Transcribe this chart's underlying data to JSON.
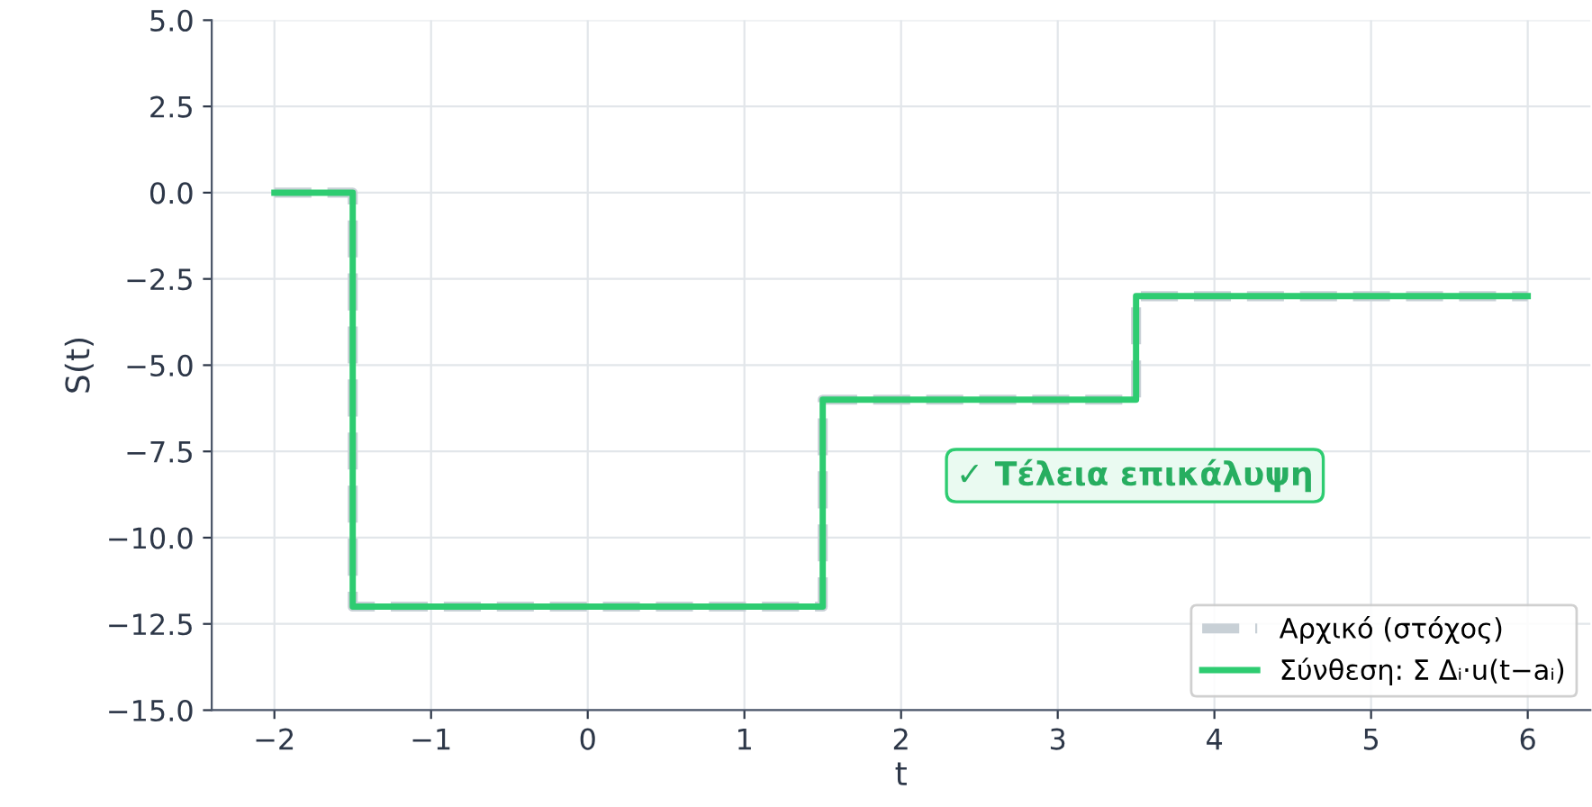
{
  "chart_data": {
    "type": "step",
    "xlabel": "t",
    "ylabel": "S(t)",
    "x": [
      -2,
      -1.5,
      1.5,
      3.5,
      6
    ],
    "series": [
      {
        "name": "Αρχικό (στόχος)",
        "color": "#c8d0d6",
        "line_style": "dashed",
        "values": [
          0,
          -12,
          -6,
          -3,
          -3
        ]
      },
      {
        "name": "Σύνθεση: Σ Δᵢ·u(t−aᵢ)",
        "color": "#2ecc71",
        "line_style": "solid",
        "values": [
          0,
          -12,
          -6,
          -3,
          -3
        ]
      }
    ],
    "xlim": [
      -2.4,
      6.4
    ],
    "xticks": [
      {
        "value": -2,
        "label": "−2"
      },
      {
        "value": -1,
        "label": "−1"
      },
      0,
      1,
      2,
      3,
      4,
      5,
      6
    ],
    "ylim": [
      -15,
      5
    ],
    "yticks": [
      {
        "value": -15,
        "label": "−15.0"
      },
      {
        "value": -12.5,
        "label": "−12.5"
      },
      {
        "value": -10,
        "label": "−10.0"
      },
      {
        "value": -7.5,
        "label": "−7.5"
      },
      {
        "value": -5,
        "label": "−5.0"
      },
      {
        "value": -2.5,
        "label": "−2.5"
      },
      {
        "value": 0,
        "label": "0.0"
      },
      {
        "value": 2.5,
        "label": "2.5"
      },
      {
        "value": 5,
        "label": "5.0"
      }
    ],
    "annotations": [
      "✓ Τέλεια επικάλυψη"
    ],
    "grid": true,
    "legend": "bottom right"
  }
}
